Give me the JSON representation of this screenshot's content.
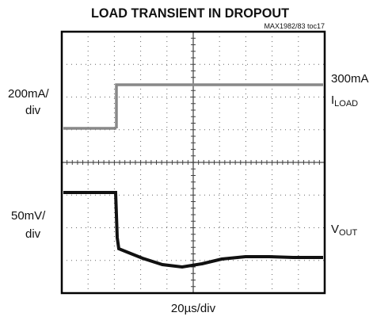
{
  "title": "LOAD TRANSIENT IN DROPOUT",
  "note": "MAX1982/83 toc17",
  "load_scale": [
    "200mA/",
    "div"
  ],
  "load_level": "300mA",
  "load_name": {
    "symbol": "I",
    "subscript": "LOAD"
  },
  "vout_scale": [
    "50mV/",
    "div"
  ],
  "vout_name": {
    "symbol": "V",
    "subscript": "OUT"
  },
  "time_scale": "20µs/div"
}
